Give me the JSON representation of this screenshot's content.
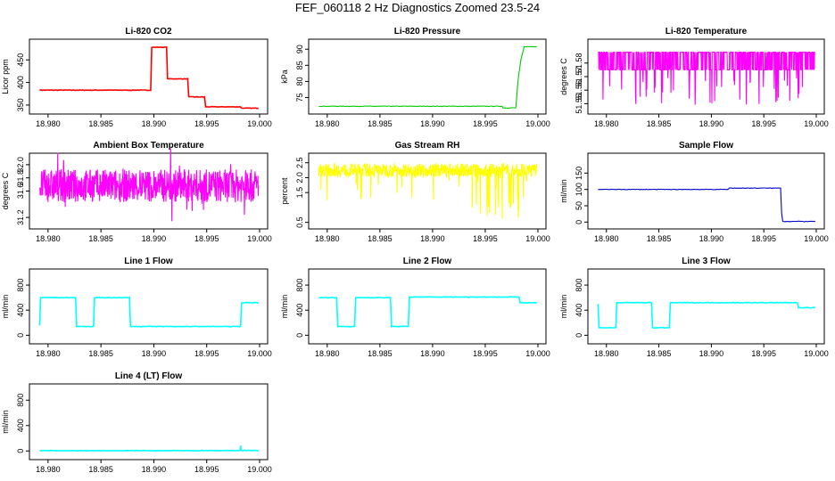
{
  "page": {
    "title": "FEF_060118  2 Hz Diagnostics Zoomed 23.5-24"
  },
  "chart_data": [
    {
      "type": "line",
      "title": "Li-820 CO2",
      "ylabel": "Licor ppm",
      "xlabel": "",
      "color": "#ff0000",
      "xlim": [
        18.979,
        19.0
      ],
      "ylim": [
        338,
        488
      ],
      "xticks": [
        "18.980",
        "18.985",
        "18.990",
        "18.995",
        "19.000"
      ],
      "yticks": [
        "350",
        "400",
        "450"
      ],
      "series": [
        {
          "x": [
            18.9792,
            18.9897,
            18.9898,
            18.9912,
            18.9913,
            18.9932,
            18.9933,
            18.9948,
            18.9949,
            18.9982,
            18.9983,
            18.9999
          ],
          "y": [
            383,
            383,
            478,
            478,
            408,
            408,
            368,
            368,
            346,
            346,
            343,
            343
          ]
        }
      ]
    },
    {
      "type": "line",
      "title": "Li-820 Pressure",
      "ylabel": "kPa",
      "xlabel": "",
      "color": "#00cc00",
      "xlim": [
        18.979,
        19.0
      ],
      "ylim": [
        71,
        92
      ],
      "xticks": [
        "18.980",
        "18.985",
        "18.990",
        "18.995",
        "19.000"
      ],
      "yticks": [
        "75",
        "80",
        "85",
        "90"
      ],
      "series": [
        {
          "x": [
            18.9792,
            18.9966,
            18.9967,
            18.9979,
            18.9981,
            18.9984,
            18.9987,
            18.9999
          ],
          "y": [
            72.3,
            72.3,
            71.8,
            71.8,
            80,
            87,
            90.8,
            90.8
          ]
        }
      ]
    },
    {
      "type": "line",
      "title": "Li-820 Temperature",
      "ylabel": "degrees C",
      "xlabel": "",
      "color": "#ff00ff",
      "xlim": [
        18.979,
        19.0
      ],
      "ylim": [
        51.545,
        51.595
      ],
      "xticks": [
        "18.980",
        "18.985",
        "18.990",
        "18.995",
        "19.000"
      ],
      "yticks": [
        "51.55",
        "51.56",
        "51.57",
        "51.58"
      ],
      "series": [
        {
          "x": [],
          "y": []
        }
      ]
    },
    {
      "type": "line",
      "title": "Ambient Box Temperature",
      "ylabel": "degrees C",
      "xlabel": "",
      "color": "#ff00ff",
      "xlim": [
        18.979,
        19.0
      ],
      "ylim": [
        31.08,
        32.12
      ],
      "xticks": [
        "18.980",
        "18.985",
        "18.990",
        "18.995",
        "19.000"
      ],
      "yticks": [
        "31.2",
        "31.6",
        "31.8",
        "32.0"
      ],
      "series": [
        {
          "x": [],
          "y": []
        }
      ]
    },
    {
      "type": "line",
      "title": "Gas Stream RH",
      "ylabel": "percent",
      "xlabel": "",
      "color": "#ffff00",
      "xlim": [
        18.979,
        19.0
      ],
      "ylim": [
        0.4,
        2.7
      ],
      "xticks": [
        "18.980",
        "18.985",
        "18.990",
        "18.995",
        "19.000"
      ],
      "yticks": [
        "0.5",
        "1.5",
        "2.0",
        "2.5"
      ],
      "series": [
        {
          "x": [],
          "y": []
        }
      ]
    },
    {
      "type": "line",
      "title": "Sample Flow",
      "ylabel": "ml/min",
      "xlabel": "",
      "color": "#0000cc",
      "xlim": [
        18.979,
        19.0
      ],
      "ylim": [
        -10,
        200
      ],
      "xticks": [
        "18.980",
        "18.985",
        "18.990",
        "18.995",
        "19.000"
      ],
      "yticks": [
        "0",
        "50",
        "100",
        "150"
      ],
      "series": [
        {
          "x": [
            18.9792,
            18.9916,
            18.9917,
            18.9966,
            18.9967,
            18.9968,
            18.9999
          ],
          "y": [
            100,
            100,
            104,
            104,
            28,
            2,
            2
          ]
        }
      ]
    },
    {
      "type": "line",
      "title": "Line 1 Flow",
      "ylabel": "ml/min",
      "xlabel": "",
      "color": "#00ffff",
      "xlim": [
        18.979,
        19.0
      ],
      "ylim": [
        -80,
        1000
      ],
      "xticks": [
        "18.980",
        "18.985",
        "18.990",
        "18.995",
        "19.000"
      ],
      "yticks": [
        "0",
        "400",
        "800"
      ],
      "series": [
        {
          "x": [
            18.9792,
            18.9793,
            18.9826,
            18.9827,
            18.9843,
            18.9844,
            18.9877,
            18.9878,
            18.9982,
            18.9983,
            18.9999
          ],
          "y": [
            160,
            600,
            600,
            140,
            140,
            600,
            600,
            140,
            140,
            520,
            520
          ]
        }
      ]
    },
    {
      "type": "line",
      "title": "Line 2 Flow",
      "ylabel": "ml/min",
      "xlabel": "",
      "color": "#00ffff",
      "xlim": [
        18.979,
        19.0
      ],
      "ylim": [
        -80,
        1000
      ],
      "xticks": [
        "18.980",
        "18.985",
        "18.990",
        "18.995",
        "19.000"
      ],
      "yticks": [
        "0",
        "400",
        "800"
      ],
      "series": [
        {
          "x": [
            18.9792,
            18.9809,
            18.981,
            18.9826,
            18.9827,
            18.986,
            18.9861,
            18.9877,
            18.9878,
            18.9982,
            18.9983,
            18.9999
          ],
          "y": [
            600,
            600,
            140,
            140,
            600,
            600,
            140,
            140,
            610,
            610,
            520,
            520
          ]
        }
      ]
    },
    {
      "type": "line",
      "title": "Line 3 Flow",
      "ylabel": "ml/min",
      "xlabel": "",
      "color": "#00ffff",
      "xlim": [
        18.979,
        19.0
      ],
      "ylim": [
        -80,
        1000
      ],
      "xticks": [
        "18.980",
        "18.985",
        "18.990",
        "18.995",
        "19.000"
      ],
      "yticks": [
        "0",
        "400",
        "800"
      ],
      "series": [
        {
          "x": [
            18.9792,
            18.9793,
            18.9809,
            18.981,
            18.9843,
            18.9844,
            18.986,
            18.9861,
            18.9982,
            18.9983,
            18.9999
          ],
          "y": [
            500,
            120,
            120,
            520,
            520,
            120,
            120,
            520,
            520,
            440,
            440
          ]
        }
      ]
    },
    {
      "type": "line",
      "title": "Line 4 (LT) Flow",
      "ylabel": "ml/min",
      "xlabel": "",
      "color": "#00ffff",
      "xlim": [
        18.979,
        19.0
      ],
      "ylim": [
        -80,
        1000
      ],
      "xticks": [
        "18.980",
        "18.985",
        "18.990",
        "18.995",
        "19.000"
      ],
      "yticks": [
        "0",
        "400",
        "800"
      ],
      "series": [
        {
          "x": [
            18.9792,
            18.99815,
            18.9982,
            18.99825,
            18.9999
          ],
          "y": [
            5,
            5,
            80,
            8,
            8
          ]
        }
      ]
    }
  ]
}
